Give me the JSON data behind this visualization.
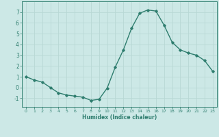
{
  "x": [
    0,
    1,
    2,
    3,
    4,
    5,
    6,
    7,
    8,
    9,
    10,
    11,
    12,
    13,
    14,
    15,
    16,
    17,
    18,
    19,
    20,
    21,
    22,
    23
  ],
  "y": [
    1.0,
    0.7,
    0.5,
    0.0,
    -0.5,
    -0.7,
    -0.8,
    -0.9,
    -1.2,
    -1.1,
    -0.05,
    1.9,
    3.5,
    5.5,
    6.9,
    7.2,
    7.1,
    5.8,
    4.2,
    3.5,
    3.2,
    3.0,
    2.5,
    1.5
  ],
  "xlabel": "Humidex (Indice chaleur)",
  "line_color": "#2e7d6e",
  "marker": "D",
  "marker_size": 1.8,
  "line_width": 1.0,
  "bg_color": "#cce8e6",
  "grid_color": "#b8d8d5",
  "tick_color": "#2e7d6e",
  "label_color": "#2e7d6e",
  "xlim": [
    -0.5,
    23.5
  ],
  "ylim": [
    -1.8,
    8.0
  ],
  "yticks": [
    -1,
    0,
    1,
    2,
    3,
    4,
    5,
    6,
    7
  ],
  "xticks": [
    0,
    1,
    2,
    3,
    4,
    5,
    6,
    7,
    8,
    9,
    10,
    11,
    12,
    13,
    14,
    15,
    16,
    17,
    18,
    19,
    20,
    21,
    22,
    23
  ],
  "xtick_labels": [
    "0",
    "1",
    "2",
    "3",
    "4",
    "5",
    "6",
    "7",
    "8",
    "9",
    "10",
    "11",
    "12",
    "13",
    "14",
    "15",
    "16",
    "17",
    "18",
    "19",
    "20",
    "21",
    "22",
    "23"
  ]
}
